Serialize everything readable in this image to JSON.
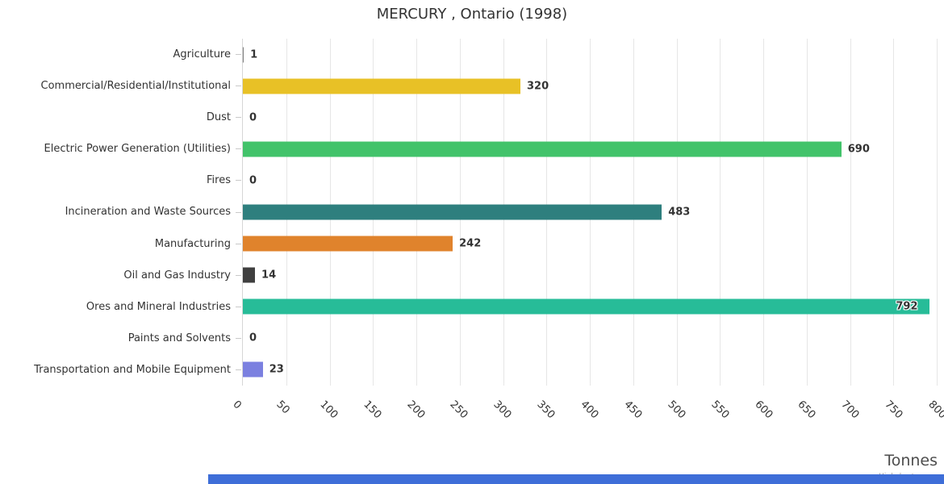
{
  "chart_data": {
    "type": "bar",
    "orientation": "horizontal",
    "title": "MERCURY , Ontario (1998)",
    "categories": [
      "Agriculture",
      "Commercial/Residential/Institutional",
      "Dust",
      "Electric Power Generation (Utilities)",
      "Fires",
      "Incineration and Waste Sources",
      "Manufacturing",
      "Oil and Gas Industry",
      "Ores and Mineral Industries",
      "Paints and Solvents",
      "Transportation and Mobile Equipment"
    ],
    "values": [
      1,
      320,
      0,
      690,
      0,
      483,
      242,
      14,
      792,
      0,
      23
    ],
    "bar_colors": [
      "#7f7f7f",
      "#E8C126",
      "#7f7f7f",
      "#42C36A",
      "#7f7f7f",
      "#2E7F7E",
      "#E0832C",
      "#3F3F3F",
      "#27BC98",
      "#7f7f7f",
      "#7B80E0"
    ],
    "xlabel": "Tonnes",
    "ylabel": "",
    "xlim": [
      0,
      800
    ],
    "xticks": [
      0,
      50,
      100,
      150,
      200,
      250,
      300,
      350,
      400,
      450,
      500,
      550,
      600,
      650,
      700,
      750,
      800
    ],
    "grid": true,
    "legend": false,
    "value_labels": true
  },
  "credits": "Highcharts.com",
  "colors": {
    "grid": "#e6e6e6",
    "axis_line": "#d6d6d6",
    "tick": "#c9c9c9",
    "text": "#333333",
    "bottom_strip": "#3E6ED8"
  }
}
